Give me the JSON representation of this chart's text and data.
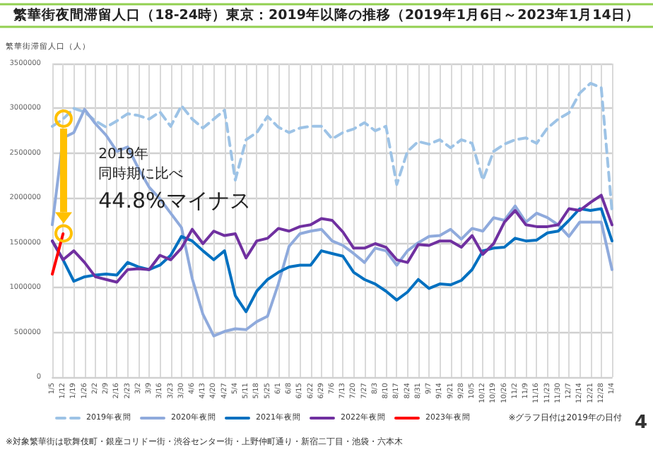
{
  "chart_data": {
    "type": "line",
    "title": "繁華街夜間滞留人口（18-24時）東京：2019年以降の推移（2019年1月6日～2023年1月14日）",
    "ylabel": "繁華街滞留人口（人）",
    "categories": [
      "1/5",
      "1/12",
      "1/19",
      "1/26",
      "2/2",
      "2/9",
      "2/16",
      "2/23",
      "3/2",
      "3/9",
      "3/16",
      "3/23",
      "3/30",
      "4/6",
      "4/13",
      "4/20",
      "4/27",
      "5/4",
      "5/11",
      "5/18",
      "5/25",
      "6/1",
      "6/8",
      "6/15",
      "6/22",
      "6/29",
      "7/6",
      "7/13",
      "7/20",
      "7/27",
      "8/3",
      "8/10",
      "8/17",
      "8/24",
      "8/31",
      "9/7",
      "9/14",
      "9/21",
      "9/28",
      "10/5",
      "10/12",
      "10/19",
      "10/26",
      "11/2",
      "11/9",
      "11/16",
      "11/23",
      "11/30",
      "12/7",
      "12/14",
      "12/21",
      "12/28",
      "1/4"
    ],
    "series": [
      {
        "name": "2019年夜間",
        "color": "#9dc3e6",
        "line_style": "dashed",
        "values": [
          2800000,
          2880000,
          3000000,
          2960000,
          2860000,
          2790000,
          2860000,
          2940000,
          2920000,
          2880000,
          2960000,
          2800000,
          3030000,
          2880000,
          2780000,
          2880000,
          2980000,
          2200000,
          2650000,
          2730000,
          2910000,
          2790000,
          2730000,
          2780000,
          2800000,
          2800000,
          2660000,
          2730000,
          2770000,
          2840000,
          2750000,
          2800000,
          2150000,
          2520000,
          2630000,
          2600000,
          2650000,
          2560000,
          2650000,
          2610000,
          2200000,
          2520000,
          2600000,
          2650000,
          2670000,
          2610000,
          2780000,
          2880000,
          2950000,
          3170000,
          3280000,
          3230000,
          1850000
        ]
      },
      {
        "name": "2020年夜間",
        "color": "#8faadc",
        "values": [
          1700000,
          2670000,
          2730000,
          2990000,
          2830000,
          2700000,
          2520000,
          2570000,
          2330000,
          2120000,
          1990000,
          1830000,
          1670000,
          1100000,
          700000,
          460000,
          510000,
          540000,
          530000,
          620000,
          680000,
          1040000,
          1460000,
          1600000,
          1630000,
          1650000,
          1520000,
          1470000,
          1380000,
          1280000,
          1440000,
          1410000,
          1250000,
          1410000,
          1500000,
          1570000,
          1580000,
          1650000,
          1540000,
          1660000,
          1630000,
          1780000,
          1750000,
          1910000,
          1730000,
          1830000,
          1780000,
          1700000,
          1570000,
          1730000,
          1730000,
          1730000,
          1200000
        ]
      },
      {
        "name": "2021年夜間",
        "color": "#0070c0",
        "values": [
          1520000,
          1310000,
          1070000,
          1120000,
          1140000,
          1150000,
          1140000,
          1280000,
          1230000,
          1200000,
          1250000,
          1360000,
          1570000,
          1520000,
          1410000,
          1310000,
          1410000,
          910000,
          730000,
          960000,
          1090000,
          1170000,
          1230000,
          1250000,
          1250000,
          1410000,
          1380000,
          1350000,
          1170000,
          1090000,
          1040000,
          960000,
          860000,
          950000,
          1090000,
          990000,
          1040000,
          1030000,
          1080000,
          1200000,
          1410000,
          1440000,
          1450000,
          1550000,
          1520000,
          1530000,
          1610000,
          1630000,
          1750000,
          1880000,
          1860000,
          1880000,
          1520000
        ]
      },
      {
        "name": "2022年夜間",
        "color": "#7030a0",
        "values": [
          1520000,
          1310000,
          1410000,
          1280000,
          1120000,
          1090000,
          1060000,
          1200000,
          1210000,
          1200000,
          1360000,
          1310000,
          1440000,
          1650000,
          1490000,
          1630000,
          1580000,
          1600000,
          1330000,
          1520000,
          1550000,
          1660000,
          1630000,
          1680000,
          1700000,
          1770000,
          1750000,
          1620000,
          1440000,
          1440000,
          1490000,
          1450000,
          1310000,
          1280000,
          1480000,
          1470000,
          1520000,
          1520000,
          1450000,
          1580000,
          1370000,
          1490000,
          1730000,
          1860000,
          1700000,
          1680000,
          1680000,
          1700000,
          1880000,
          1860000,
          1950000,
          2030000,
          1700000
        ]
      },
      {
        "name": "2023年夜間",
        "color": "#ff0000",
        "values": [
          1150000,
          1600000,
          null,
          null,
          null,
          null,
          null,
          null,
          null,
          null,
          null,
          null,
          null,
          null,
          null,
          null,
          null,
          null,
          null,
          null,
          null,
          null,
          null,
          null,
          null,
          null,
          null,
          null,
          null,
          null,
          null,
          null,
          null,
          null,
          null,
          null,
          null,
          null,
          null,
          null,
          null,
          null,
          null,
          null,
          null,
          null,
          null,
          null,
          null,
          null,
          null,
          null,
          null
        ]
      }
    ],
    "ylim": [
      0,
      3500000
    ],
    "yticks": [
      0,
      500000,
      1000000,
      1500000,
      2000000,
      2500000,
      3000000,
      3500000
    ],
    "grid": true,
    "legend": "bottom",
    "line_style": "solid",
    "annotations": [
      {
        "text": "2019年",
        "x": "1/12",
        "y": 2470000
      },
      {
        "text": "同時期に比べ",
        "x": "1/12",
        "y": 2250000
      },
      {
        "text": "44.8%マイナス",
        "x": "1/12",
        "y": 1970000
      },
      "※対象繁華街は歌舞伎町・銀座コリドー街・渋谷センター街・上野仲町通り・新宿二丁目・池袋・六本木",
      "※グラフ日付は2019年の日付",
      "4"
    ]
  }
}
